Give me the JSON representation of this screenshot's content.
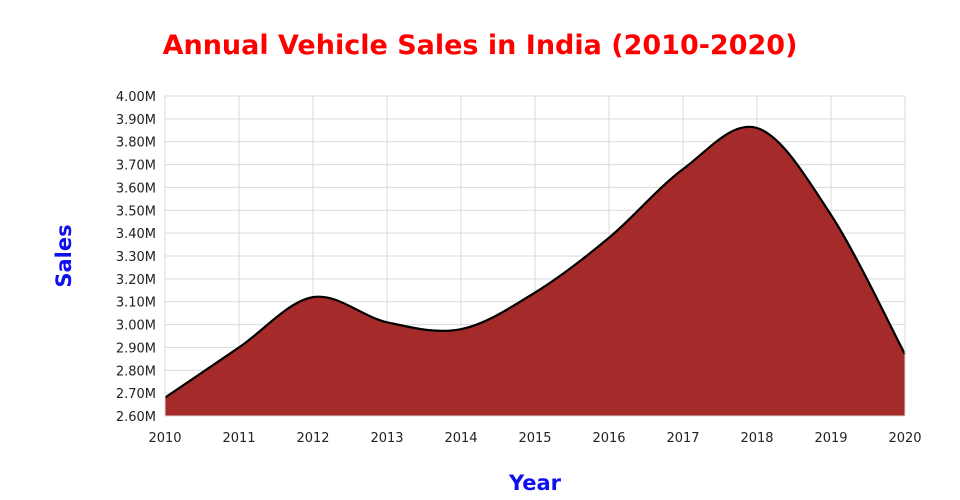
{
  "chart_data": {
    "type": "area",
    "title": "Annual Vehicle Sales in India (2010-2020)",
    "xlabel": "Year",
    "ylabel": "Sales",
    "x": [
      "2010",
      "2011",
      "2012",
      "2013",
      "2014",
      "2015",
      "2016",
      "2017",
      "2018",
      "2019",
      "2020"
    ],
    "series": [
      {
        "name": "Sales",
        "values": [
          2.68,
          2.9,
          3.12,
          3.01,
          2.98,
          3.14,
          3.38,
          3.68,
          3.86,
          3.48,
          2.87
        ]
      }
    ],
    "ylim": [
      2.6,
      4.0
    ],
    "yticks": [
      2.6,
      2.7,
      2.8,
      2.9,
      3.0,
      3.1,
      3.2,
      3.3,
      3.4,
      3.5,
      3.6,
      3.7,
      3.8,
      3.9,
      4.0
    ],
    "ytick_labels": [
      "2.60M",
      "2.70M",
      "2.80M",
      "2.90M",
      "3.00M",
      "3.10M",
      "3.20M",
      "3.30M",
      "3.40M",
      "3.50M",
      "3.60M",
      "3.70M",
      "3.80M",
      "3.90M",
      "4.00M"
    ],
    "grid": true,
    "colors": {
      "fill": "#a52a2a",
      "line": "#000000",
      "title": "#ff0000",
      "axis_title": "#1010ee"
    }
  }
}
